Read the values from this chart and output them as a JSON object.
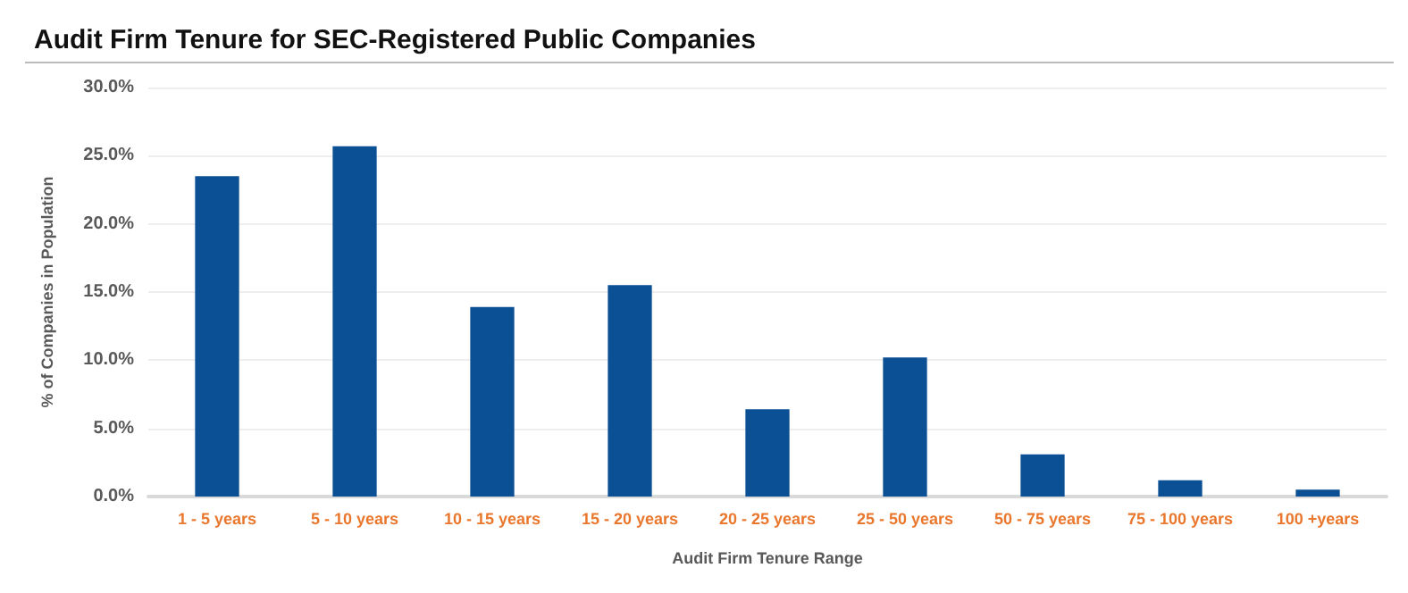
{
  "chart_data": {
    "type": "bar",
    "title": "Audit Firm Tenure for SEC-Registered Public Companies",
    "xlabel": "Audit Firm Tenure Range",
    "ylabel": "% of Companies in Population",
    "categories": [
      "1 - 5 years",
      "5 - 10 years",
      "10 - 15 years",
      "15 - 20 years",
      "20 - 25 years",
      "25 - 50 years",
      "50 - 75 years",
      "75 - 100 years",
      "100 +years"
    ],
    "values": [
      23.5,
      25.7,
      13.9,
      15.5,
      6.4,
      10.2,
      3.1,
      1.2,
      0.5
    ],
    "color": "#0b4f95",
    "ylim": [
      0,
      30
    ],
    "yticks": [
      {
        "value": 0,
        "label": "0.0%"
      },
      {
        "value": 5,
        "label": "5.0%"
      },
      {
        "value": 10,
        "label": "10.0%"
      },
      {
        "value": 15,
        "label": "15.0%"
      },
      {
        "value": 20,
        "label": "20.0%"
      },
      {
        "value": 25,
        "label": "25.0%"
      },
      {
        "value": 30,
        "label": "30.0%"
      }
    ],
    "grid": "y"
  }
}
